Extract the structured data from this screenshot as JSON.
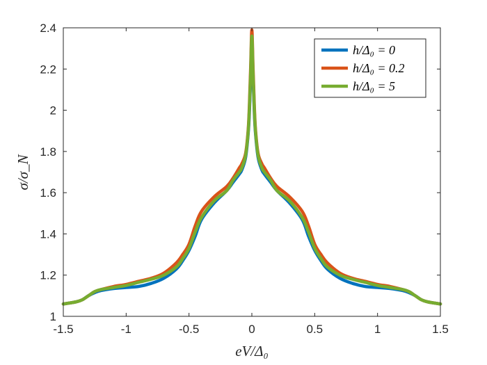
{
  "chart_data": {
    "type": "line",
    "title": "",
    "xlabel": "eV/Δ₀",
    "ylabel": "σ/σ_N",
    "xlim": [
      -1.5,
      1.5
    ],
    "ylim": [
      1,
      2.4
    ],
    "xticks": [
      -1.5,
      -1,
      -0.5,
      0,
      0.5,
      1,
      1.5
    ],
    "xtick_labels": [
      "-1.5",
      "-1",
      "-0.5",
      "0",
      "0.5",
      "1",
      "1.5"
    ],
    "yticks": [
      1,
      1.2,
      1.4,
      1.6,
      1.8,
      2,
      2.2,
      2.4
    ],
    "ytick_labels": [
      "1",
      "1.2",
      "1.4",
      "1.6",
      "1.8",
      "2",
      "2.2",
      "2.4"
    ],
    "grid": false,
    "legend_position": "top-right",
    "series": [
      {
        "name": "h/Δ₀ = 0",
        "color": "#0072BD",
        "x": [
          0,
          0.01,
          0.02,
          0.03,
          0.05,
          0.08,
          0.1,
          0.15,
          0.2,
          0.3,
          0.4,
          0.45,
          0.5,
          0.55,
          0.6,
          0.7,
          0.8,
          0.9,
          1.0,
          1.1,
          1.2,
          1.25,
          1.3,
          1.35,
          1.4,
          1.5
        ],
        "y": [
          2.34,
          2.15,
          1.98,
          1.88,
          1.77,
          1.71,
          1.69,
          1.65,
          1.61,
          1.55,
          1.47,
          1.39,
          1.32,
          1.27,
          1.23,
          1.185,
          1.16,
          1.145,
          1.14,
          1.135,
          1.125,
          1.115,
          1.1,
          1.08,
          1.07,
          1.06
        ]
      },
      {
        "name": "h/Δ₀ = 0.2",
        "color": "#D95319",
        "x": [
          0,
          0.01,
          0.02,
          0.03,
          0.05,
          0.08,
          0.1,
          0.15,
          0.2,
          0.3,
          0.4,
          0.45,
          0.5,
          0.55,
          0.6,
          0.7,
          0.8,
          0.9,
          1.0,
          1.1,
          1.2,
          1.25,
          1.3,
          1.35,
          1.4,
          1.5
        ],
        "y": [
          2.39,
          2.2,
          2.02,
          1.9,
          1.79,
          1.74,
          1.72,
          1.67,
          1.63,
          1.58,
          1.51,
          1.44,
          1.35,
          1.3,
          1.26,
          1.21,
          1.185,
          1.17,
          1.155,
          1.145,
          1.13,
          1.12,
          1.1,
          1.08,
          1.07,
          1.06
        ]
      },
      {
        "name": "h/Δ₀ = 5",
        "color": "#77AC30",
        "x": [
          0,
          0.01,
          0.02,
          0.03,
          0.05,
          0.08,
          0.1,
          0.15,
          0.2,
          0.3,
          0.4,
          0.45,
          0.5,
          0.55,
          0.6,
          0.7,
          0.8,
          0.9,
          1.0,
          1.1,
          1.2,
          1.25,
          1.3,
          1.35,
          1.4,
          1.5
        ],
        "y": [
          2.36,
          2.17,
          2.0,
          1.89,
          1.78,
          1.72,
          1.7,
          1.66,
          1.61,
          1.56,
          1.48,
          1.41,
          1.33,
          1.28,
          1.24,
          1.2,
          1.18,
          1.165,
          1.15,
          1.14,
          1.13,
          1.12,
          1.1,
          1.08,
          1.07,
          1.06
        ]
      }
    ]
  }
}
